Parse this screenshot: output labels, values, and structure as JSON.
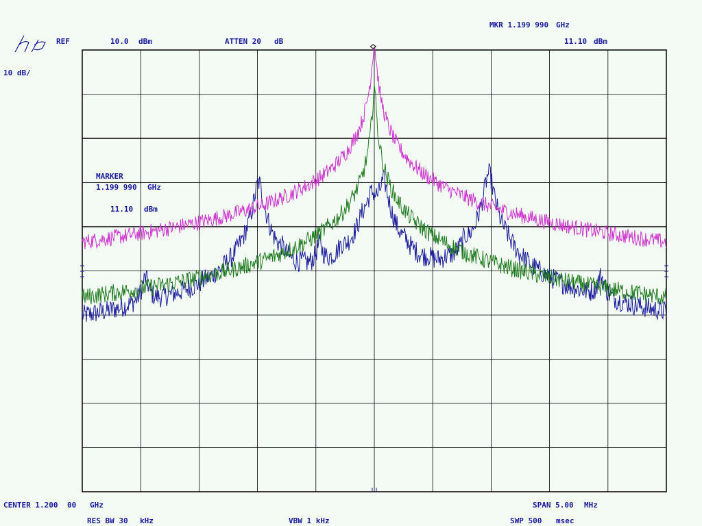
{
  "header": {
    "ref_label": "REF",
    "ref_value": "10.0",
    "ref_unit": "dBm",
    "atten_label": "ATTEN 20",
    "atten_unit": "dB",
    "mkr_label": "MKR 1.199 990",
    "mkr_unit": "GHz",
    "mkr_amp_value": "11.10",
    "mkr_amp_unit": "dBm",
    "scale": "10  dB/"
  },
  "marker_panel": {
    "title": "MARKER",
    "freq_value": "1.199 990",
    "freq_unit": "GHz",
    "amp_value": "11.10",
    "amp_unit": "dBm"
  },
  "footer": {
    "center_label": "CENTER 1.200",
    "center_digits": "00",
    "center_unit": "GHz",
    "span_label": "SPAN 5.00",
    "span_unit": "MHz",
    "resbw_label": "RES BW 30",
    "resbw_unit": "kHz",
    "vbw_label": "VBW 1 kHz",
    "swp_label": "SWP 500",
    "swp_unit": "msec"
  },
  "colors": {
    "background": "#f4fbf5",
    "graticule": "#000000",
    "text": "#1a1a9a",
    "trace_blue": "#1a1a9a",
    "trace_magenta": "#cc33cc",
    "trace_green": "#1f7a1f"
  },
  "chart_data": {
    "type": "line",
    "x_unit": "MHz",
    "y_unit": "dBm",
    "xlim": [
      1197.5,
      1202.5
    ],
    "ylim": [
      -90,
      10
    ],
    "grid": true,
    "marker": {
      "x": 1199.99,
      "y": 11.1
    },
    "series": [
      {
        "color": "trace_blue",
        "floor": -81,
        "noise": 1.2,
        "peaks": [
          {
            "x": 1197.88,
            "y": -64,
            "w": 0.025
          },
          {
            "x": 1198.04,
            "y": -43,
            "w": 0.028
          },
          {
            "x": 1198.22,
            "y": -66,
            "w": 0.025
          },
          {
            "x": 1198.48,
            "y": -77,
            "w": 0.03
          },
          {
            "x": 1198.58,
            "y": -69,
            "w": 0.025
          },
          {
            "x": 1198.74,
            "y": -76,
            "w": 0.03
          },
          {
            "x": 1198.87,
            "y": -46,
            "w": 0.03
          },
          {
            "x": 1199.01,
            "y": -20,
            "w": 0.032
          },
          {
            "x": 1199.21,
            "y": -41,
            "w": 0.03
          },
          {
            "x": 1199.38,
            "y": -47,
            "w": 0.028
          },
          {
            "x": 1199.53,
            "y": -36,
            "w": 0.028
          },
          {
            "x": 1199.72,
            "y": -40,
            "w": 0.028
          },
          {
            "x": 1199.9,
            "y": -33,
            "w": 0.03
          },
          {
            "x": 1200.08,
            "y": -20,
            "w": 0.032
          },
          {
            "x": 1199.98,
            "y": -23,
            "w": 0.05
          },
          {
            "x": 1200.27,
            "y": -41,
            "w": 0.028
          },
          {
            "x": 1200.46,
            "y": -46,
            "w": 0.03
          },
          {
            "x": 1200.61,
            "y": -48,
            "w": 0.028
          },
          {
            "x": 1200.78,
            "y": -37,
            "w": 0.028
          },
          {
            "x": 1200.98,
            "y": -18,
            "w": 0.032
          },
          {
            "x": 1201.13,
            "y": -42,
            "w": 0.03
          },
          {
            "x": 1201.32,
            "y": -66,
            "w": 0.025
          },
          {
            "x": 1201.45,
            "y": -71,
            "w": 0.025
          },
          {
            "x": 1201.76,
            "y": -71,
            "w": 0.028
          },
          {
            "x": 1201.94,
            "y": -43,
            "w": 0.03
          },
          {
            "x": 1202.13,
            "y": -66,
            "w": 0.028
          }
        ]
      },
      {
        "color": "trace_magenta",
        "floor": -84,
        "noise": 0.9,
        "peaks": [
          {
            "x": 1198.05,
            "y": -74,
            "w": 0.012
          },
          {
            "x": 1198.99,
            "y": -58,
            "w": 0.012
          },
          {
            "x": 1200.0,
            "y": 11,
            "w": 0.015
          },
          {
            "x": 1199.0,
            "y": -70,
            "w": 0.025
          },
          {
            "x": 1199.78,
            "y": -59,
            "w": 0.012
          },
          {
            "x": 1200.17,
            "y": -60,
            "w": 0.012
          },
          {
            "x": 1200.96,
            "y": -58,
            "w": 0.012
          },
          {
            "x": 1201.93,
            "y": -76,
            "w": 0.012
          }
        ],
        "skirt": {
          "center": 1200.0,
          "level": -50,
          "width": 0.45
        }
      },
      {
        "color": "trace_green",
        "floor": -87,
        "noise": 1.0,
        "peaks": [
          {
            "x": 1198.05,
            "y": -80,
            "w": 0.008
          },
          {
            "x": 1199.0,
            "y": -79,
            "w": 0.008
          },
          {
            "x": 1200.0,
            "y": 2,
            "w": 0.01
          },
          {
            "x": 1199.81,
            "y": -48,
            "w": 0.01
          },
          {
            "x": 1200.17,
            "y": -70,
            "w": 0.01
          },
          {
            "x": 1200.95,
            "y": -79,
            "w": 0.008
          },
          {
            "x": 1201.93,
            "y": -81,
            "w": 0.008
          }
        ],
        "skirt": {
          "center": 1200.0,
          "level": -58,
          "width": 0.3
        }
      }
    ]
  }
}
